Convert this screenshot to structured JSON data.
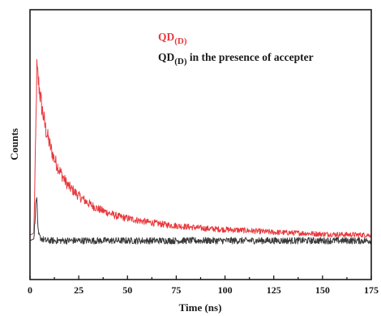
{
  "chart_data": {
    "type": "line",
    "title": "",
    "xlabel": "Time (ns)",
    "ylabel": "Counts",
    "xlim": [
      0,
      175
    ],
    "ylim": [
      0,
      1.0
    ],
    "y_ticks_labeled": false,
    "x_ticks": [
      0,
      25,
      50,
      75,
      100,
      125,
      150,
      175
    ],
    "x_tick_labels": [
      "0",
      "25",
      "50",
      "75",
      "100",
      "125",
      "150",
      "175"
    ],
    "legend_position": "top-right",
    "legend_entries": [
      {
        "main": "QD",
        "sub": "(D)",
        "suffix": "",
        "color": "#e8383d"
      },
      {
        "main": "QD",
        "sub": "(D)",
        "suffix": " in the presence of accepter",
        "color": "#1a1a1a"
      }
    ],
    "series": [
      {
        "legend_main": "QD",
        "legend_sub": "(D)",
        "color": "#e8383d",
        "x": [
          0,
          2,
          3,
          3.5,
          4,
          5,
          6,
          8,
          10,
          12,
          15,
          18,
          20,
          25,
          30,
          35,
          40,
          45,
          50,
          60,
          70,
          80,
          90,
          100,
          110,
          125,
          140,
          150,
          160,
          175
        ],
        "y": [
          0.03,
          0.04,
          0.6,
          0.92,
          0.88,
          0.8,
          0.72,
          0.6,
          0.52,
          0.45,
          0.38,
          0.32,
          0.29,
          0.24,
          0.2,
          0.17,
          0.15,
          0.13,
          0.12,
          0.1,
          0.085,
          0.075,
          0.065,
          0.06,
          0.055,
          0.045,
          0.04,
          0.035,
          0.033,
          0.03
        ]
      },
      {
        "legend_main": "QD",
        "legend_sub": "(D) in the presence of accepter",
        "color": "#3a3a3a",
        "x": [
          0,
          2,
          3,
          3.5,
          4,
          4.5,
          5,
          6,
          8,
          10,
          15,
          25,
          50,
          75,
          100,
          125,
          150,
          175
        ],
        "y": [
          0.0,
          0.01,
          0.2,
          0.24,
          0.06,
          0.03,
          0.02,
          0.01,
          0.0,
          0.0,
          0.0,
          0.0,
          0.0,
          0.0,
          0.0,
          0.0,
          0.0,
          0.0
        ]
      }
    ]
  }
}
